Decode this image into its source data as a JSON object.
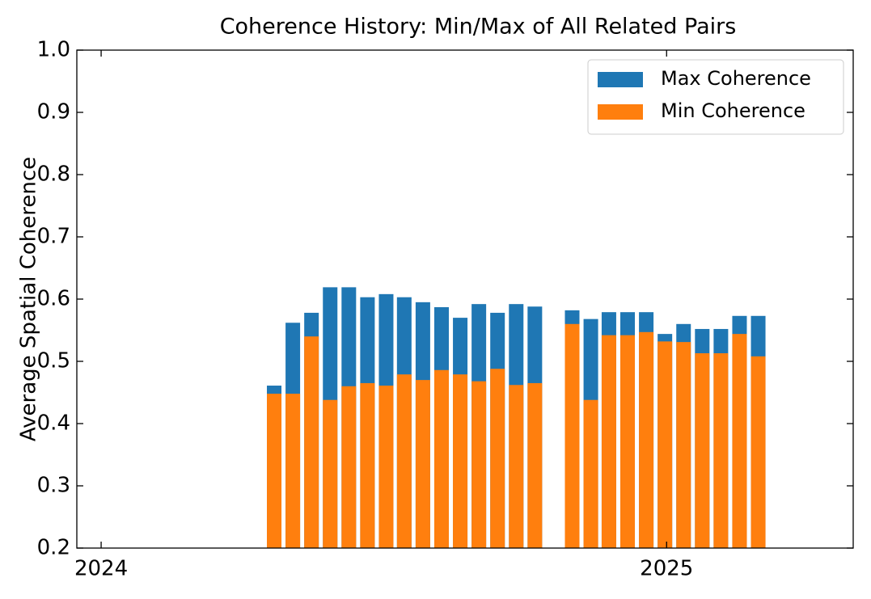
{
  "chart_data": {
    "type": "bar",
    "title": "Coherence History: Min/Max of All Related Pairs",
    "y_label": "Average Spatial Coherence",
    "x": [
      2024.306,
      2024.339,
      2024.372,
      2024.405,
      2024.438,
      2024.471,
      2024.504,
      2024.536,
      2024.569,
      2024.602,
      2024.635,
      2024.668,
      2024.701,
      2024.734,
      2024.767,
      2024.833,
      2024.866,
      2024.898,
      2024.931,
      2024.964,
      2024.997,
      2025.03,
      2025.063,
      2025.096,
      2025.129,
      2025.162
    ],
    "series": [
      {
        "name": "Max Coherence",
        "color": "#1f77b4",
        "values": [
          0.461,
          0.562,
          0.578,
          0.619,
          0.619,
          0.603,
          0.608,
          0.603,
          0.595,
          0.587,
          0.57,
          0.592,
          0.578,
          0.592,
          0.588,
          0.582,
          0.568,
          0.579,
          0.579,
          0.579,
          0.544,
          0.56,
          0.552,
          0.552,
          0.573,
          0.573
        ]
      },
      {
        "name": "Min Coherence",
        "color": "#ff7f0e",
        "values": [
          0.448,
          0.448,
          0.54,
          0.438,
          0.46,
          0.465,
          0.461,
          0.479,
          0.47,
          0.486,
          0.479,
          0.468,
          0.488,
          0.462,
          0.465,
          0.56,
          0.438,
          0.542,
          0.542,
          0.547,
          0.532,
          0.531,
          0.513,
          0.513,
          0.544,
          0.508
        ]
      }
    ],
    "xlim": [
      2023.957,
      2025.33
    ],
    "xticks": [
      2024,
      2025
    ],
    "ylim": [
      0.2,
      1.0
    ],
    "yticks": [
      0.2,
      0.3,
      0.4,
      0.5,
      0.6,
      0.7,
      0.8,
      0.9,
      {
        "value": 1.0,
        "label": "1.0"
      }
    ],
    "legend": "upper right"
  }
}
